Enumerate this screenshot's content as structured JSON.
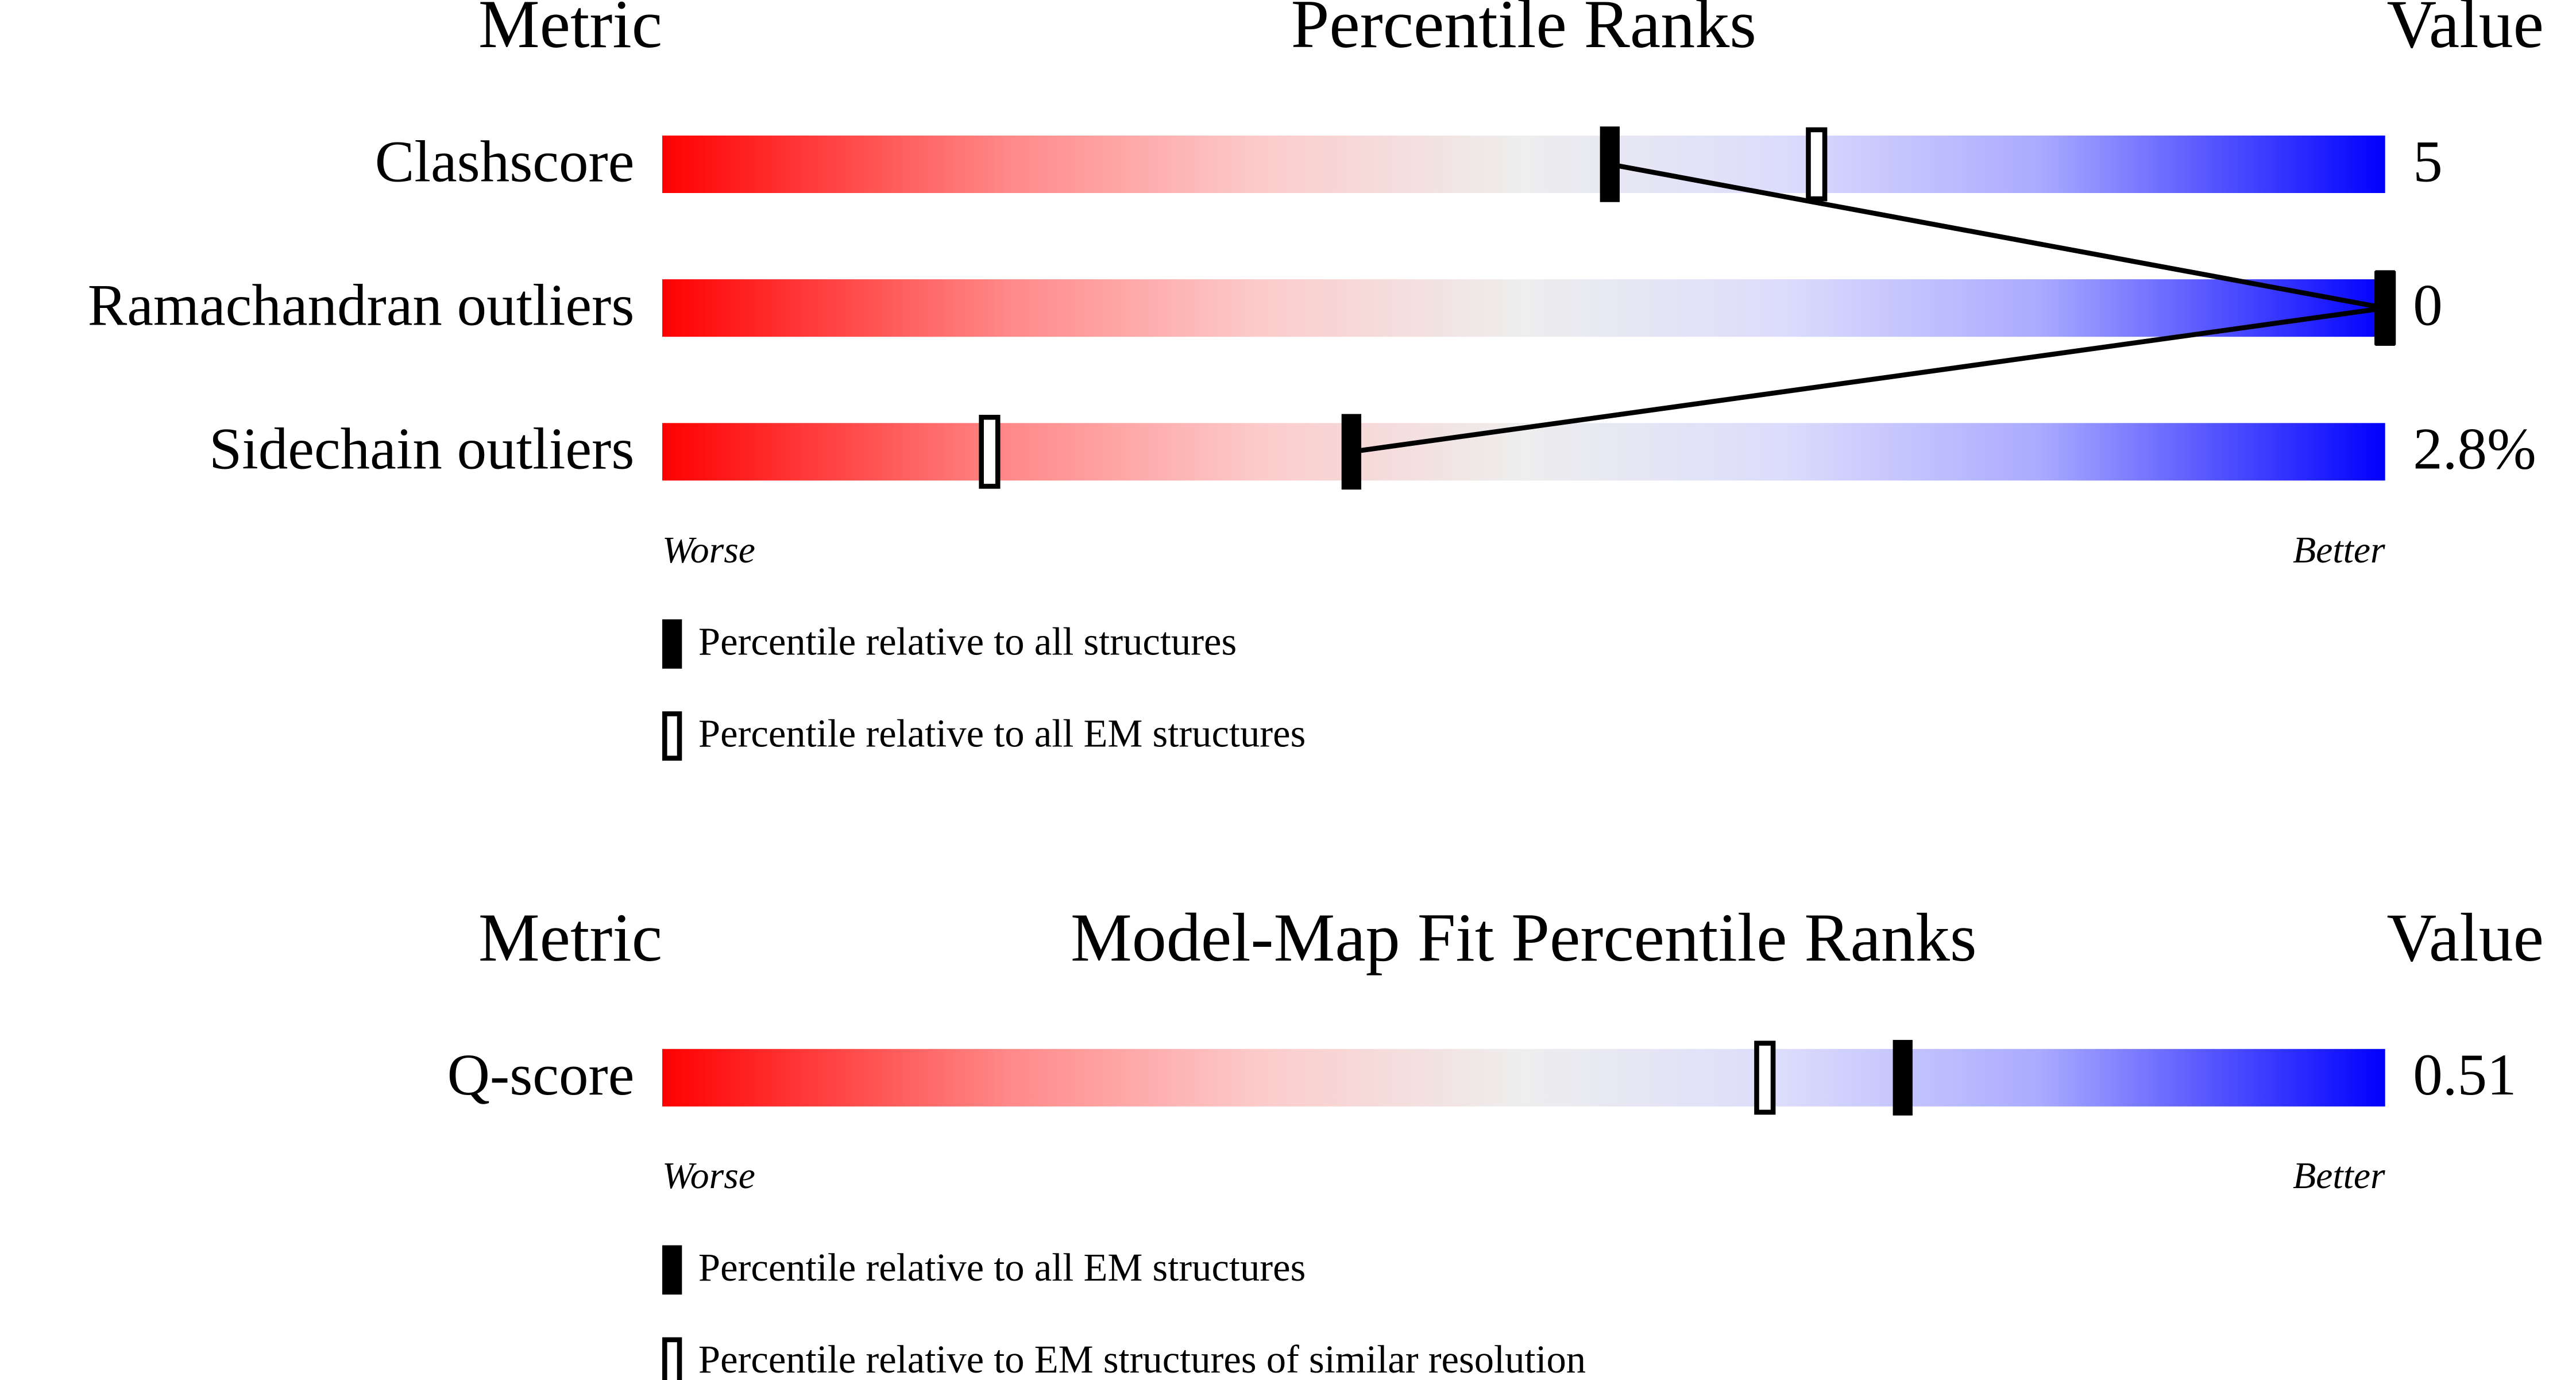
{
  "chart_data": [
    {
      "type": "slider",
      "title": "Percentile Ranks",
      "metric_header": "Metric",
      "value_header": "Value",
      "categories": [
        "Clashscore",
        "Ramachandran outliers",
        "Sidechain outliers"
      ],
      "metric_values": [
        "5",
        "0",
        "2.8%"
      ],
      "xlim": [
        0,
        100
      ],
      "axis_labels": [
        "Worse",
        "Better"
      ],
      "series": [
        {
          "name": "Percentile relative to all structures",
          "marker": "filled",
          "color": "#000000",
          "values": [
            55,
            100,
            40
          ]
        },
        {
          "name": "Percentile relative to all EM structures",
          "marker": "open",
          "color": "#000000",
          "values": [
            67,
            100,
            19
          ]
        }
      ]
    },
    {
      "type": "slider",
      "title": "Model-Map Fit Percentile Ranks",
      "metric_header": "Metric",
      "value_header": "Value",
      "categories": [
        "Q-score"
      ],
      "metric_values": [
        "0.51"
      ],
      "xlim": [
        0,
        100
      ],
      "axis_labels": [
        "Worse",
        "Better"
      ],
      "series": [
        {
          "name": "Percentile relative to all EM structures",
          "marker": "filled",
          "color": "#000000",
          "values": [
            72
          ]
        },
        {
          "name": "Percentile relative to EM structures of similar resolution",
          "marker": "open",
          "color": "#000000",
          "values": [
            64
          ]
        }
      ]
    }
  ]
}
